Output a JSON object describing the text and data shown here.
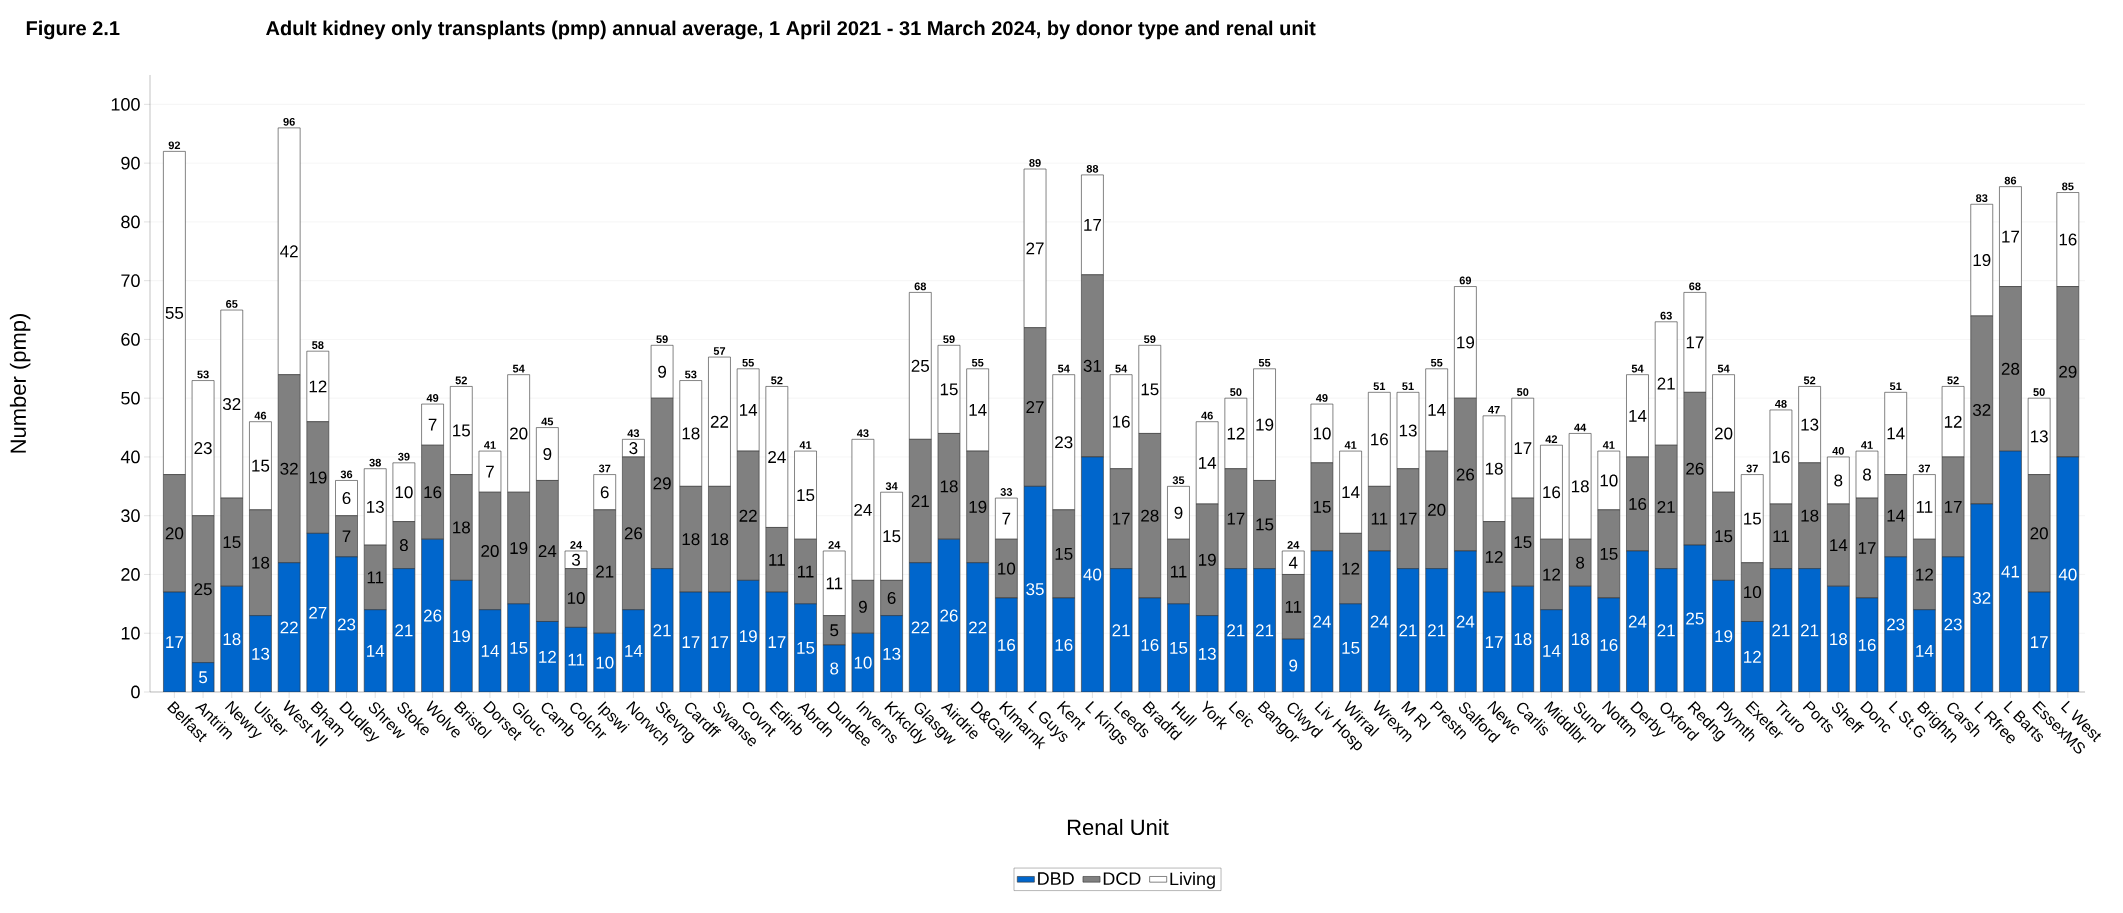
{
  "chart_data": {
    "type": "bar",
    "stacked": true,
    "title": "Adult kidney only transplants (pmp) annual average, 1 April 2021 - 31 March 2024, by donor type and renal unit",
    "annotations": [
      "Figure 2.1"
    ],
    "xlabel": "Renal Unit",
    "ylabel": "Number (pmp)",
    "categories": [
      "Belfast",
      "Antrim",
      "Newry",
      "Ulster",
      "West NI",
      "Bham",
      "Dudley",
      "Shrew",
      "Stoke",
      "Wolve",
      "Bristol",
      "Dorset",
      "Glouc",
      "Camb",
      "Colchr",
      "Ipswi",
      "Norwch",
      "Stevng",
      "Cardff",
      "Swanse",
      "Covnt",
      "Edinb",
      "Abrdn",
      "Dundee",
      "Inverns",
      "Krkcldy",
      "Glasgw",
      "Airdrie",
      "D&Gall",
      "Klmarnk",
      "L Guys",
      "Kent",
      "L Kings",
      "Leeds",
      "Bradfd",
      "Hull",
      "York",
      "Leic",
      "Bangor",
      "Clwyd",
      "Liv Hosp",
      "Wirral",
      "Wrexm",
      "M RI",
      "Prestn",
      "Salford",
      "Newc",
      "Carlis",
      "Middlbr",
      "Sund",
      "Nottm",
      "Derby",
      "Oxford",
      "Redng",
      "Plymth",
      "Exeter",
      "Truro",
      "Ports",
      "Sheff",
      "Donc",
      "L St.G",
      "Brightn",
      "Carsh",
      "L Rfree",
      "L Barts",
      "EssexMS",
      "L West"
    ],
    "series": [
      {
        "name": "DBD",
        "color": "#0066cc",
        "values": [
          17,
          5,
          18,
          13,
          22,
          27,
          23,
          14,
          21,
          26,
          19,
          14,
          15,
          12,
          11,
          10,
          14,
          21,
          17,
          17,
          19,
          17,
          15,
          8,
          10,
          13,
          22,
          26,
          22,
          16,
          35,
          16,
          40,
          21,
          16,
          15,
          13,
          21,
          21,
          9,
          24,
          15,
          24,
          21,
          21,
          24,
          17,
          18,
          14,
          18,
          16,
          24,
          21,
          25,
          19,
          12,
          21,
          21,
          18,
          16,
          23,
          14,
          23,
          32,
          41,
          17,
          40
        ]
      },
      {
        "name": "DCD",
        "color": "#808080",
        "values": [
          20,
          25,
          15,
          18,
          32,
          19,
          7,
          11,
          8,
          16,
          18,
          20,
          19,
          24,
          10,
          21,
          26,
          29,
          18,
          18,
          22,
          11,
          11,
          5,
          9,
          6,
          21,
          18,
          19,
          10,
          27,
          15,
          31,
          17,
          28,
          11,
          19,
          17,
          15,
          11,
          15,
          12,
          11,
          17,
          20,
          26,
          12,
          15,
          12,
          8,
          15,
          16,
          21,
          26,
          15,
          10,
          11,
          18,
          14,
          17,
          14,
          12,
          17,
          32,
          28,
          20,
          29
        ]
      },
      {
        "name": "Living",
        "color": "#ffffff",
        "values": [
          55,
          23,
          32,
          15,
          42,
          12,
          6,
          13,
          10,
          7,
          15,
          7,
          20,
          9,
          3,
          6,
          3,
          9,
          18,
          22,
          14,
          24,
          15,
          11,
          24,
          15,
          25,
          15,
          14,
          7,
          27,
          23,
          17,
          16,
          15,
          9,
          14,
          12,
          19,
          4,
          10,
          14,
          16,
          13,
          14,
          19,
          18,
          17,
          16,
          18,
          10,
          14,
          21,
          17,
          20,
          15,
          16,
          13,
          8,
          8,
          14,
          11,
          12,
          19,
          17,
          13,
          16
        ]
      }
    ],
    "totals": [
      "92",
      "53",
      "65",
      "46",
      "96",
      "58",
      "36",
      "38",
      "39",
      "49",
      "52",
      "41",
      "54",
      "45",
      "24",
      "37",
      "43",
      "59",
      "53",
      "57",
      "55",
      "52",
      "41",
      "24",
      "43",
      "34",
      "68",
      "59",
      "55",
      "33",
      "89",
      "54",
      "88",
      "54",
      "59",
      "35",
      "46",
      "50",
      "55",
      "24",
      "49",
      "41",
      "51",
      "51",
      "55",
      "69",
      "47",
      "50",
      "42",
      "44",
      "41",
      "54",
      "63",
      "68",
      "54",
      "37",
      "48",
      "52",
      "40",
      "41",
      "51",
      "37",
      "52",
      "83",
      "86",
      "50",
      "85"
    ],
    "data_labels": true,
    "ylim": [
      0,
      105
    ],
    "yticks": [
      0,
      10,
      20,
      30,
      40,
      50,
      60,
      70,
      80,
      90,
      100
    ],
    "grid": "y",
    "legend": "bottom"
  }
}
